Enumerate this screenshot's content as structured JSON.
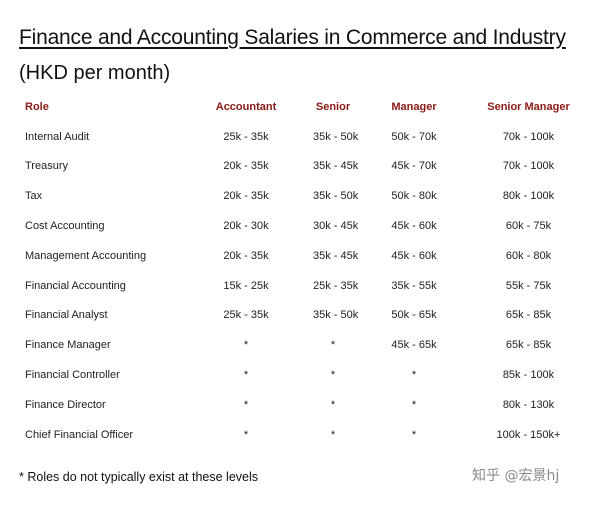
{
  "title": "Finance and Accounting Salaries in Commerce and Industry",
  "subtitle": "(HKD per month)",
  "table": {
    "headers": [
      "Role",
      "Accountant",
      "Senior",
      "Manager",
      "Senior Manager"
    ],
    "rows": [
      [
        "Internal Audit",
        "25k - 35k",
        "35k - 50k",
        "50k - 70k",
        "70k - 100k"
      ],
      [
        "Treasury",
        "20k - 35k",
        "35k - 45k",
        "45k - 70k",
        "70k - 100k"
      ],
      [
        "Tax",
        "20k - 35k",
        "35k - 50k",
        "50k - 80k",
        "80k - 100k"
      ],
      [
        "Cost Accounting",
        "20k - 30k",
        "30k - 45k",
        "45k - 60k",
        "60k - 75k"
      ],
      [
        "Management Accounting",
        "20k - 35k",
        "35k - 45k",
        "45k - 60k",
        "60k - 80k"
      ],
      [
        "Financial Accounting",
        "15k - 25k",
        "25k - 35k",
        "35k - 55k",
        "55k - 75k"
      ],
      [
        "Financial Analyst",
        "25k - 35k",
        "35k - 50k",
        "50k - 65k",
        "65k - 85k"
      ],
      [
        "Finance Manager",
        "*",
        "*",
        "45k - 65k",
        "65k - 85k"
      ],
      [
        "Financial Controller",
        "*",
        "*",
        "*",
        "85k - 100k"
      ],
      [
        "Finance Director",
        "*",
        "*",
        "*",
        "80k - 130k"
      ],
      [
        "Chief Financial Officer",
        "*",
        "*",
        "*",
        "100k - 150k+"
      ]
    ]
  },
  "footnote": "* Roles do not typically exist at these levels",
  "watermark": "知乎 @宏景hj",
  "colors": {
    "header_text": "#8b1a14",
    "body_text": "#222222",
    "watermark": "#8a8a8a"
  }
}
